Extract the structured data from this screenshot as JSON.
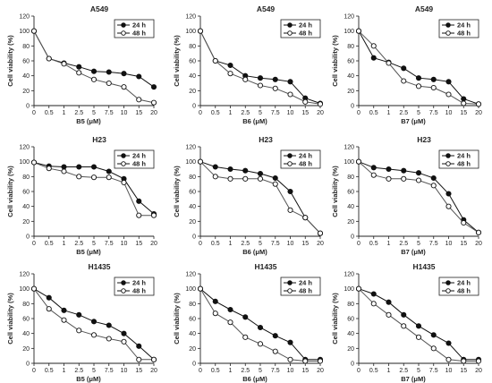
{
  "chart_data": [
    {
      "type": "line",
      "title": "A549",
      "xlabel": "B5 (μM)",
      "ylabel": "Cell viability (%)",
      "categories": [
        "0",
        "0.5",
        "1",
        "2.5",
        "5",
        "7.5",
        "10",
        "15",
        "20"
      ],
      "ylim": [
        0,
        120
      ],
      "yticks": [
        0,
        20,
        40,
        60,
        80,
        100,
        120
      ],
      "legend_position": "top-right",
      "series": [
        {
          "name": "24 h",
          "marker": "filled",
          "values": [
            100,
            63,
            57,
            52,
            46,
            45,
            43,
            39,
            25
          ]
        },
        {
          "name": "48 h",
          "marker": "open",
          "values": [
            100,
            63,
            56,
            44,
            35,
            30,
            25,
            8,
            4
          ]
        }
      ]
    },
    {
      "type": "line",
      "title": "A549",
      "xlabel": "B6 (μM)",
      "ylabel": "Cell viability (%)",
      "categories": [
        "0",
        "0.5",
        "1",
        "2.5",
        "5",
        "7.5",
        "10",
        "15",
        "20"
      ],
      "ylim": [
        0,
        120
      ],
      "yticks": [
        0,
        20,
        40,
        60,
        80,
        100,
        120
      ],
      "legend_position": "top-right",
      "series": [
        {
          "name": "24 h",
          "marker": "filled",
          "values": [
            100,
            60,
            54,
            40,
            37,
            35,
            32,
            10,
            3
          ]
        },
        {
          "name": "48 h",
          "marker": "open",
          "values": [
            100,
            60,
            43,
            35,
            27,
            23,
            15,
            5,
            2
          ]
        }
      ]
    },
    {
      "type": "line",
      "title": "A549",
      "xlabel": "B7 (μM)",
      "ylabel": "Cell viability (%)",
      "categories": [
        "0",
        "0.5",
        "1",
        "2.5",
        "5",
        "7.5",
        "10",
        "15",
        "20"
      ],
      "ylim": [
        0,
        120
      ],
      "yticks": [
        0,
        20,
        40,
        60,
        80,
        100,
        120
      ],
      "legend_position": "top-right",
      "series": [
        {
          "name": "24 h",
          "marker": "filled",
          "values": [
            100,
            64,
            58,
            50,
            37,
            35,
            32,
            9,
            2
          ]
        },
        {
          "name": "48 h",
          "marker": "open",
          "values": [
            100,
            80,
            57,
            33,
            26,
            24,
            15,
            3,
            2
          ]
        }
      ]
    },
    {
      "type": "line",
      "title": "H23",
      "xlabel": "B5 (μM)",
      "ylabel": "Cell viability (%)",
      "categories": [
        "0",
        "0.5",
        "1",
        "2.5",
        "5",
        "7.5",
        "10",
        "15",
        "20"
      ],
      "ylim": [
        0,
        120
      ],
      "yticks": [
        0,
        20,
        40,
        60,
        80,
        100,
        120
      ],
      "legend_position": "top-right",
      "series": [
        {
          "name": "24 h",
          "marker": "filled",
          "values": [
            99,
            94,
            93,
            93,
            93,
            87,
            77,
            47,
            30
          ]
        },
        {
          "name": "48 h",
          "marker": "open",
          "values": [
            99,
            91,
            87,
            80,
            79,
            79,
            72,
            28,
            28
          ]
        }
      ]
    },
    {
      "type": "line",
      "title": "H23",
      "xlabel": "B6 (μM)",
      "ylabel": "Cell viability (%)",
      "categories": [
        "0",
        "0.5",
        "1",
        "2.5",
        "5",
        "7.5",
        "10",
        "15",
        "20"
      ],
      "ylim": [
        0,
        120
      ],
      "yticks": [
        0,
        20,
        40,
        60,
        80,
        100,
        120
      ],
      "legend_position": "top-right",
      "series": [
        {
          "name": "24 h",
          "marker": "filled",
          "values": [
            100,
            93,
            90,
            88,
            84,
            78,
            60,
            25,
            4
          ]
        },
        {
          "name": "48 h",
          "marker": "open",
          "values": [
            100,
            80,
            77,
            77,
            77,
            70,
            35,
            25,
            4
          ]
        }
      ]
    },
    {
      "type": "line",
      "title": "H23",
      "xlabel": "B7 (μM)",
      "ylabel": "Cell viability (%)",
      "categories": [
        "0",
        "0.5",
        "1",
        "2.5",
        "5",
        "7.5",
        "10",
        "15",
        "20"
      ],
      "ylim": [
        0,
        120
      ],
      "yticks": [
        0,
        20,
        40,
        60,
        80,
        100,
        120
      ],
      "legend_position": "top-right",
      "series": [
        {
          "name": "24 h",
          "marker": "filled",
          "values": [
            100,
            92,
            90,
            88,
            85,
            78,
            57,
            22,
            5
          ]
        },
        {
          "name": "48 h",
          "marker": "open",
          "values": [
            100,
            82,
            77,
            77,
            75,
            68,
            40,
            18,
            5
          ]
        }
      ]
    },
    {
      "type": "line",
      "title": "H1435",
      "xlabel": "B5 (μM)",
      "ylabel": "Cell viability (%)",
      "categories": [
        "0",
        "0.5",
        "1",
        "2.5",
        "5",
        "7.5",
        "10",
        "15",
        "20"
      ],
      "ylim": [
        0,
        120
      ],
      "yticks": [
        0,
        20,
        40,
        60,
        80,
        100,
        120
      ],
      "legend_position": "top-right",
      "series": [
        {
          "name": "24 h",
          "marker": "filled",
          "values": [
            100,
            88,
            71,
            65,
            56,
            51,
            40,
            23,
            5
          ]
        },
        {
          "name": "48 h",
          "marker": "open",
          "values": [
            100,
            73,
            58,
            44,
            38,
            33,
            29,
            5,
            5
          ]
        }
      ]
    },
    {
      "type": "line",
      "title": "H1435",
      "xlabel": "B6 (μM)",
      "ylabel": "Cell viability (%)",
      "categories": [
        "0",
        "0.5",
        "1",
        "2.5",
        "5",
        "7.5",
        "10",
        "15",
        "20"
      ],
      "ylim": [
        0,
        120
      ],
      "yticks": [
        0,
        20,
        40,
        60,
        80,
        100,
        120
      ],
      "legend_position": "top-right",
      "series": [
        {
          "name": "24 h",
          "marker": "filled",
          "values": [
            100,
            83,
            72,
            62,
            48,
            37,
            28,
            5,
            5
          ]
        },
        {
          "name": "48 h",
          "marker": "open",
          "values": [
            100,
            67,
            55,
            35,
            26,
            16,
            5,
            3,
            3
          ]
        }
      ]
    },
    {
      "type": "line",
      "title": "H1435",
      "xlabel": "B7 (μM)",
      "ylabel": "Cell viability (%)",
      "categories": [
        "0",
        "0.5",
        "1",
        "2.5",
        "5",
        "7.5",
        "10",
        "15",
        "20"
      ],
      "ylim": [
        0,
        120
      ],
      "yticks": [
        0,
        20,
        40,
        60,
        80,
        100,
        120
      ],
      "legend_position": "top-right",
      "series": [
        {
          "name": "24 h",
          "marker": "filled",
          "values": [
            100,
            93,
            82,
            65,
            50,
            38,
            27,
            5,
            5
          ]
        },
        {
          "name": "48 h",
          "marker": "open",
          "values": [
            100,
            80,
            65,
            50,
            35,
            20,
            5,
            3,
            3
          ]
        }
      ]
    }
  ]
}
